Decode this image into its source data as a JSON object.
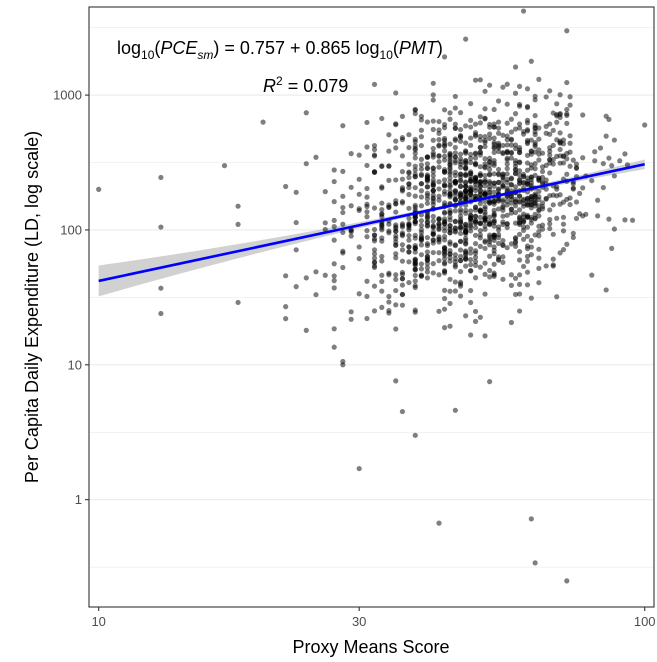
{
  "chart_data": {
    "type": "scatter",
    "x_scale": "log",
    "y_scale": "log",
    "xlim": [
      9.6,
      104
    ],
    "ylim": [
      0.16,
      4500
    ],
    "x_ticks": [
      10,
      30,
      100
    ],
    "x_tick_labels": [
      "10",
      "30",
      "100"
    ],
    "y_ticks": [
      1,
      10,
      100,
      1000
    ],
    "y_tick_labels": [
      "1",
      "10",
      "100",
      "1000"
    ],
    "y_minor_ticks": [
      0.316,
      3.16,
      31.6,
      316,
      3162
    ],
    "xlabel": "Proxy Means Score",
    "ylabel": "Per Capita Daily Expenditure (LD, log scale)",
    "grid": true,
    "equation": {
      "lhs_prefix": "log",
      "lhs_sub": "10",
      "lhs_var": "PCE",
      "lhs_var_sub": "sm",
      "rhs_text": "= 0.757 + 0.865 log",
      "rhs_sub": "10",
      "rhs_var": "PMT"
    },
    "r_squared": {
      "symbol": "R",
      "sup": "2",
      "text": "= 0.079"
    },
    "fit": {
      "intercept": 0.757,
      "slope": 0.865,
      "x_range": [
        10,
        100
      ],
      "color": "#0000ff",
      "band_color": "#bebebe"
    },
    "point_color": "#000000",
    "point_alpha": 0.5,
    "labeled_points": [
      {
        "x": 10,
        "y": 200
      },
      {
        "x": 13,
        "y": 245
      },
      {
        "x": 13,
        "y": 24
      },
      {
        "x": 13,
        "y": 37
      },
      {
        "x": 13,
        "y": 105
      },
      {
        "x": 17,
        "y": 300
      },
      {
        "x": 18,
        "y": 150
      },
      {
        "x": 18,
        "y": 110
      },
      {
        "x": 18,
        "y": 29
      },
      {
        "x": 20,
        "y": 630
      },
      {
        "x": 22,
        "y": 210
      },
      {
        "x": 22,
        "y": 27
      },
      {
        "x": 22,
        "y": 22
      },
      {
        "x": 24,
        "y": 740
      },
      {
        "x": 24,
        "y": 310
      },
      {
        "x": 24,
        "y": 18
      },
      {
        "x": 28,
        "y": 10
      },
      {
        "x": 30,
        "y": 1.7
      },
      {
        "x": 32,
        "y": 1200
      },
      {
        "x": 35,
        "y": 7.6
      },
      {
        "x": 36,
        "y": 4.5
      },
      {
        "x": 38,
        "y": 3.0
      },
      {
        "x": 42,
        "y": 0.67
      },
      {
        "x": 45,
        "y": 4.6
      },
      {
        "x": 47,
        "y": 2600
      },
      {
        "x": 52,
        "y": 7.5
      },
      {
        "x": 60,
        "y": 4200
      },
      {
        "x": 62,
        "y": 0.72
      },
      {
        "x": 63,
        "y": 0.34
      },
      {
        "x": 72,
        "y": 3000
      },
      {
        "x": 72,
        "y": 0.25
      },
      {
        "x": 100,
        "y": 600
      }
    ],
    "cloud": {
      "n": 1400,
      "x_mean_log": 1.68,
      "x_sd_log": 0.11,
      "x_min": 22,
      "x_max": 97,
      "resid_sd_log": 0.34
    }
  }
}
